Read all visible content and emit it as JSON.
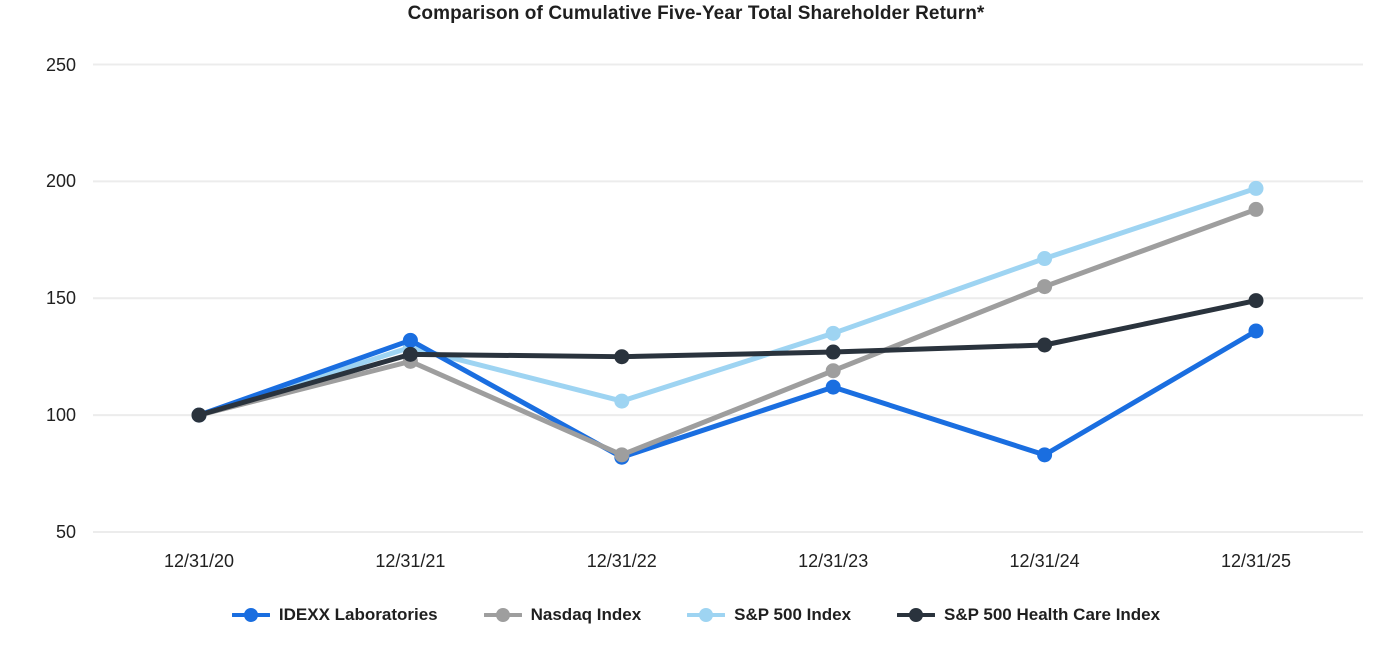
{
  "title": "Comparison of Cumulative Five-Year Total Shareholder Return*",
  "colors": {
    "background": "#FFFFFF",
    "gridline": "#ECECEC",
    "text": "#212121"
  },
  "chart_data": {
    "type": "line",
    "title": "Comparison of Cumulative Five-Year Total Shareholder Return*",
    "categories": [
      "12/31/20",
      "12/31/21",
      "12/31/22",
      "12/31/23",
      "12/31/24",
      "12/31/25"
    ],
    "series": [
      {
        "name": "IDEXX Laboratories",
        "color": "#1A6EE0",
        "values": [
          100,
          132,
          82,
          112,
          83,
          136
        ]
      },
      {
        "name": "Nasdaq Index",
        "color": "#9E9E9E",
        "values": [
          100,
          123,
          83,
          119,
          155,
          188
        ]
      },
      {
        "name": "S&P 500 Index",
        "color": "#9ED4F2",
        "values": [
          100,
          129,
          106,
          135,
          167,
          197
        ]
      },
      {
        "name": "S&P 500 Health Care Index",
        "color": "#2A333D",
        "values": [
          100,
          126,
          125,
          127,
          130,
          149
        ]
      }
    ],
    "draw_order": [
      "S&P 500 Index",
      "IDEXX Laboratories",
      "Nasdaq Index",
      "S&P 500 Health Care Index"
    ],
    "yticks": [
      250,
      200,
      150,
      100,
      50
    ],
    "ylim": [
      50,
      250
    ],
    "xlabel": "",
    "ylabel": "",
    "grid": "horizontal",
    "legend_position": "bottom",
    "marker": "circle"
  }
}
